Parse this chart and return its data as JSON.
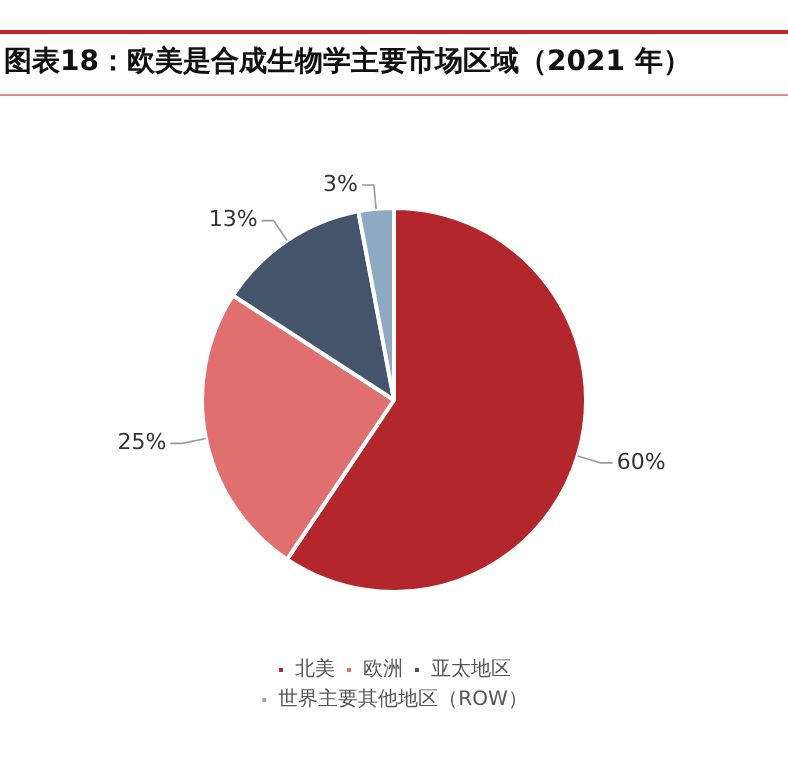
{
  "chart_data": {
    "type": "pie",
    "title": "图表18：欧美是合成生物学主要市场区域（2021 年）",
    "categories": [
      "北美",
      "欧洲",
      "亚太地区",
      "世界主要其他地区（ROW）"
    ],
    "values": [
      60,
      25,
      13,
      3
    ],
    "colors": [
      "#b3262b",
      "#e06f6f",
      "#44546a",
      "#8eaac2"
    ],
    "value_labels": [
      "60%",
      "25%",
      "13%",
      "3%"
    ],
    "legend": "bottom"
  }
}
